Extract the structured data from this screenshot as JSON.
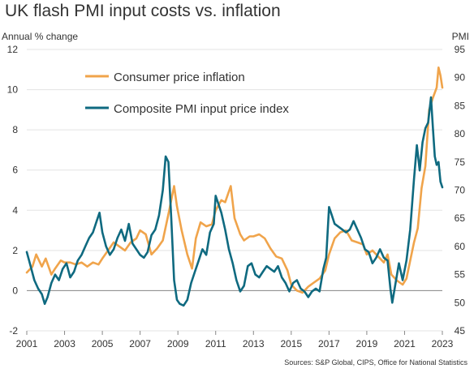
{
  "chart_data": {
    "type": "line",
    "title": "UK flash PMI input costs vs. inflation",
    "ylabel_left": "Annual % change",
    "ylabel_right": "PMI",
    "source": "Sources: S&P Global, CIPS, Office for National Statistics",
    "xlim": [
      2001,
      2023
    ],
    "x_ticks": [
      "2001",
      "2003",
      "2005",
      "2007",
      "2009",
      "2011",
      "2013",
      "2015",
      "2017",
      "2019",
      "2021",
      "2023"
    ],
    "ylim_left": [
      -2,
      12
    ],
    "y_ticks_left": [
      "-2",
      "0",
      "2",
      "4",
      "6",
      "8",
      "10",
      "12"
    ],
    "ylim_right": [
      45,
      95
    ],
    "y_ticks_right": [
      "45",
      "50",
      "55",
      "60",
      "65",
      "70",
      "75",
      "80",
      "85",
      "90",
      "95"
    ],
    "grid": "horizontal",
    "legend_position": "top-left",
    "series": [
      {
        "name": "Consumer price inflation",
        "axis": "left",
        "color": "#f0a44b",
        "points": [
          [
            2001.0,
            0.9
          ],
          [
            2001.3,
            1.2
          ],
          [
            2001.5,
            1.8
          ],
          [
            2001.8,
            1.2
          ],
          [
            2002.0,
            1.6
          ],
          [
            2002.3,
            0.8
          ],
          [
            2002.5,
            1.1
          ],
          [
            2002.8,
            1.5
          ],
          [
            2003.0,
            1.4
          ],
          [
            2003.3,
            1.4
          ],
          [
            2003.6,
            1.3
          ],
          [
            2003.9,
            1.4
          ],
          [
            2004.2,
            1.2
          ],
          [
            2004.5,
            1.4
          ],
          [
            2004.8,
            1.3
          ],
          [
            2005.0,
            1.6
          ],
          [
            2005.3,
            2.0
          ],
          [
            2005.6,
            2.4
          ],
          [
            2005.9,
            2.2
          ],
          [
            2006.2,
            2.0
          ],
          [
            2006.5,
            2.4
          ],
          [
            2006.8,
            2.6
          ],
          [
            2007.0,
            3.0
          ],
          [
            2007.3,
            2.8
          ],
          [
            2007.6,
            1.8
          ],
          [
            2007.9,
            2.1
          ],
          [
            2008.2,
            2.5
          ],
          [
            2008.5,
            3.8
          ],
          [
            2008.8,
            5.2
          ],
          [
            2008.95,
            4.2
          ],
          [
            2009.2,
            3.0
          ],
          [
            2009.5,
            1.8
          ],
          [
            2009.75,
            1.1
          ],
          [
            2009.95,
            2.6
          ],
          [
            2010.2,
            3.4
          ],
          [
            2010.5,
            3.2
          ],
          [
            2010.8,
            3.3
          ],
          [
            2011.0,
            4.0
          ],
          [
            2011.3,
            4.5
          ],
          [
            2011.5,
            4.4
          ],
          [
            2011.8,
            5.2
          ],
          [
            2012.0,
            3.6
          ],
          [
            2012.3,
            2.8
          ],
          [
            2012.5,
            2.5
          ],
          [
            2012.8,
            2.7
          ],
          [
            2013.0,
            2.7
          ],
          [
            2013.3,
            2.8
          ],
          [
            2013.6,
            2.6
          ],
          [
            2013.9,
            2.1
          ],
          [
            2014.2,
            1.7
          ],
          [
            2014.5,
            1.6
          ],
          [
            2014.8,
            1.0
          ],
          [
            2015.0,
            0.3
          ],
          [
            2015.3,
            0.0
          ],
          [
            2015.6,
            -0.1
          ],
          [
            2015.9,
            0.2
          ],
          [
            2016.2,
            0.4
          ],
          [
            2016.5,
            0.6
          ],
          [
            2016.8,
            1.0
          ],
          [
            2017.0,
            1.8
          ],
          [
            2017.3,
            2.6
          ],
          [
            2017.6,
            2.9
          ],
          [
            2017.9,
            3.0
          ],
          [
            2018.2,
            2.5
          ],
          [
            2018.5,
            2.4
          ],
          [
            2018.8,
            2.3
          ],
          [
            2019.0,
            1.8
          ],
          [
            2019.3,
            2.0
          ],
          [
            2019.6,
            1.7
          ],
          [
            2019.9,
            1.4
          ],
          [
            2020.1,
            1.8
          ],
          [
            2020.3,
            0.8
          ],
          [
            2020.6,
            0.5
          ],
          [
            2020.9,
            0.3
          ],
          [
            2021.1,
            0.6
          ],
          [
            2021.3,
            1.5
          ],
          [
            2021.5,
            2.4
          ],
          [
            2021.7,
            3.1
          ],
          [
            2021.9,
            5.1
          ],
          [
            2022.1,
            6.2
          ],
          [
            2022.3,
            9.0
          ],
          [
            2022.5,
            9.6
          ],
          [
            2022.7,
            10.1
          ],
          [
            2022.8,
            11.1
          ],
          [
            2022.9,
            10.7
          ],
          [
            2023.0,
            10.1
          ]
        ]
      },
      {
        "name": "Composite PMI input price index",
        "axis": "right",
        "color": "#0f6a80",
        "points": [
          [
            2001.0,
            59.0
          ],
          [
            2001.2,
            56.5
          ],
          [
            2001.4,
            54.0
          ],
          [
            2001.6,
            52.5
          ],
          [
            2001.8,
            51.5
          ],
          [
            2001.95,
            49.8
          ],
          [
            2002.1,
            51.0
          ],
          [
            2002.3,
            53.5
          ],
          [
            2002.5,
            55.0
          ],
          [
            2002.7,
            54.0
          ],
          [
            2002.9,
            56.0
          ],
          [
            2003.1,
            57.0
          ],
          [
            2003.3,
            54.5
          ],
          [
            2003.5,
            55.5
          ],
          [
            2003.7,
            57.5
          ],
          [
            2003.9,
            58.5
          ],
          [
            2004.1,
            60.0
          ],
          [
            2004.3,
            61.5
          ],
          [
            2004.5,
            62.5
          ],
          [
            2004.7,
            64.5
          ],
          [
            2004.85,
            66.0
          ],
          [
            2005.0,
            62.5
          ],
          [
            2005.2,
            60.0
          ],
          [
            2005.4,
            58.5
          ],
          [
            2005.6,
            59.5
          ],
          [
            2005.8,
            61.5
          ],
          [
            2006.0,
            63.0
          ],
          [
            2006.2,
            61.0
          ],
          [
            2006.4,
            64.0
          ],
          [
            2006.6,
            60.5
          ],
          [
            2006.8,
            59.5
          ],
          [
            2007.0,
            58.5
          ],
          [
            2007.2,
            58.0
          ],
          [
            2007.4,
            59.0
          ],
          [
            2007.6,
            62.0
          ],
          [
            2007.8,
            63.0
          ],
          [
            2008.0,
            65.5
          ],
          [
            2008.2,
            70.0
          ],
          [
            2008.35,
            76.0
          ],
          [
            2008.5,
            75.0
          ],
          [
            2008.65,
            65.0
          ],
          [
            2008.8,
            54.0
          ],
          [
            2008.95,
            50.5
          ],
          [
            2009.1,
            49.8
          ],
          [
            2009.3,
            49.5
          ],
          [
            2009.5,
            50.5
          ],
          [
            2009.7,
            53.5
          ],
          [
            2009.9,
            55.5
          ],
          [
            2010.1,
            57.5
          ],
          [
            2010.3,
            59.5
          ],
          [
            2010.5,
            58.5
          ],
          [
            2010.7,
            62.5
          ],
          [
            2010.9,
            64.0
          ],
          [
            2011.0,
            69.0
          ],
          [
            2011.15,
            67.5
          ],
          [
            2011.3,
            66.0
          ],
          [
            2011.5,
            63.0
          ],
          [
            2011.7,
            59.5
          ],
          [
            2011.9,
            57.0
          ],
          [
            2012.1,
            54.0
          ],
          [
            2012.3,
            52.0
          ],
          [
            2012.5,
            53.0
          ],
          [
            2012.7,
            56.5
          ],
          [
            2012.9,
            57.0
          ],
          [
            2013.1,
            55.0
          ],
          [
            2013.3,
            54.5
          ],
          [
            2013.5,
            55.5
          ],
          [
            2013.7,
            56.5
          ],
          [
            2013.9,
            56.0
          ],
          [
            2014.1,
            55.5
          ],
          [
            2014.3,
            56.5
          ],
          [
            2014.5,
            54.5
          ],
          [
            2014.7,
            53.5
          ],
          [
            2014.9,
            52.0
          ],
          [
            2015.1,
            53.5
          ],
          [
            2015.3,
            54.0
          ],
          [
            2015.5,
            52.5
          ],
          [
            2015.7,
            52.0
          ],
          [
            2015.9,
            51.0
          ],
          [
            2016.1,
            52.0
          ],
          [
            2016.3,
            52.5
          ],
          [
            2016.5,
            52.0
          ],
          [
            2016.7,
            56.0
          ],
          [
            2016.85,
            58.0
          ],
          [
            2017.0,
            67.0
          ],
          [
            2017.15,
            65.5
          ],
          [
            2017.3,
            64.0
          ],
          [
            2017.5,
            63.5
          ],
          [
            2017.7,
            63.0
          ],
          [
            2017.9,
            62.5
          ],
          [
            2018.1,
            63.0
          ],
          [
            2018.3,
            64.5
          ],
          [
            2018.5,
            63.0
          ],
          [
            2018.7,
            61.5
          ],
          [
            2018.9,
            59.5
          ],
          [
            2019.1,
            59.0
          ],
          [
            2019.3,
            57.0
          ],
          [
            2019.5,
            58.0
          ],
          [
            2019.7,
            59.5
          ],
          [
            2019.9,
            58.0
          ],
          [
            2020.1,
            57.5
          ],
          [
            2020.25,
            52.5
          ],
          [
            2020.35,
            50.0
          ],
          [
            2020.5,
            53.0
          ],
          [
            2020.7,
            57.0
          ],
          [
            2020.9,
            54.0
          ],
          [
            2021.1,
            57.5
          ],
          [
            2021.3,
            63.0
          ],
          [
            2021.5,
            72.0
          ],
          [
            2021.65,
            78.0
          ],
          [
            2021.8,
            73.5
          ],
          [
            2021.95,
            78.5
          ],
          [
            2022.1,
            81.0
          ],
          [
            2022.25,
            82.0
          ],
          [
            2022.4,
            86.5
          ],
          [
            2022.5,
            81.0
          ],
          [
            2022.6,
            76.0
          ],
          [
            2022.7,
            74.5
          ],
          [
            2022.8,
            75.0
          ],
          [
            2022.9,
            71.5
          ],
          [
            2023.0,
            70.5
          ]
        ]
      }
    ]
  }
}
